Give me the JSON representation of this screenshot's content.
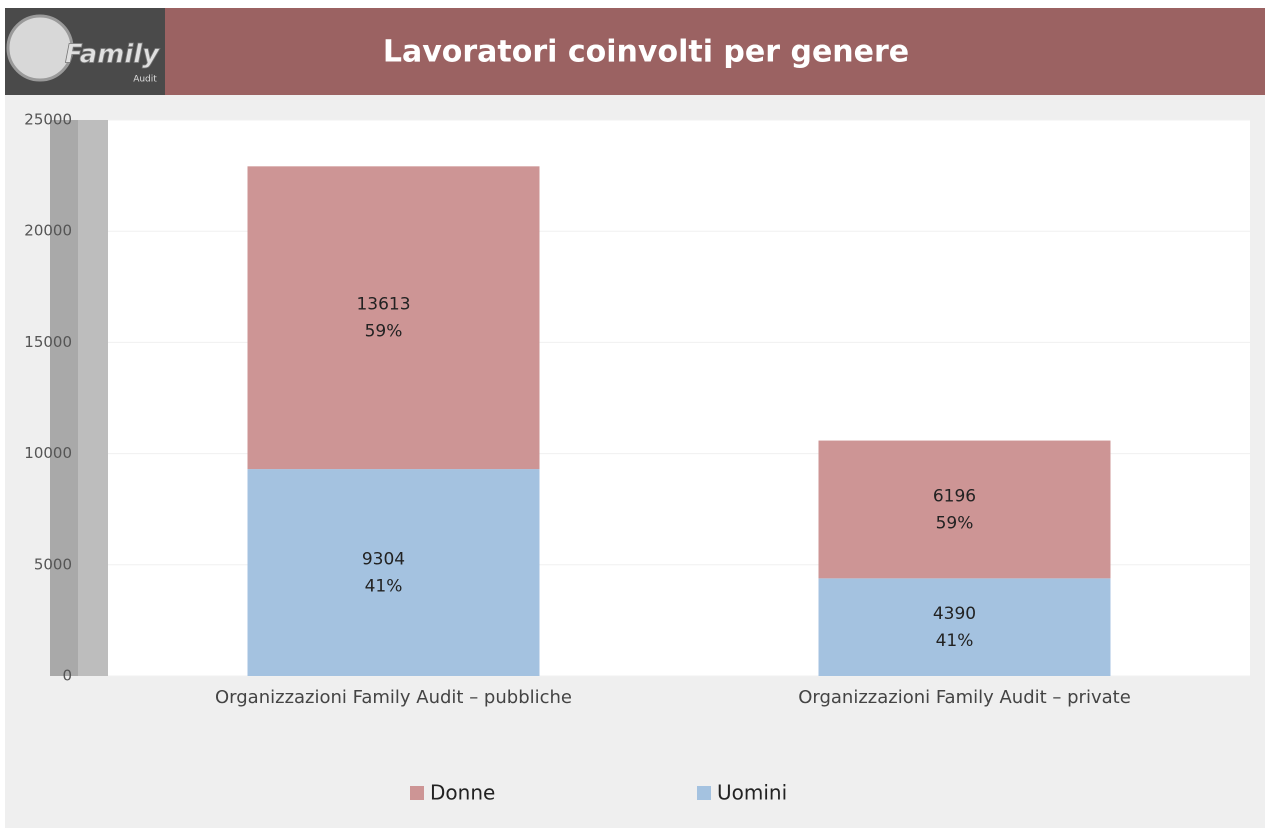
{
  "logo": {
    "text": "Family",
    "subtext": "Audit"
  },
  "chart_data": {
    "type": "stacked_bar",
    "title": "Lavoratori coinvolti per genere",
    "categories": [
      "Organizzazioni Family Audit – pubbliche",
      "Organizzazioni Family Audit – private"
    ],
    "series": [
      {
        "name": "Donne",
        "color": "#cd9595",
        "values": [
          13613,
          6196
        ],
        "percent_labels": [
          "59%",
          "59%"
        ]
      },
      {
        "name": "Uomini",
        "color": "#a4c2e0",
        "values": [
          9304,
          4390
        ],
        "percent_labels": [
          "41%",
          "41%"
        ]
      }
    ],
    "ylim": [
      0,
      25000
    ],
    "yticks": [
      0,
      5000,
      10000,
      15000,
      20000,
      25000
    ],
    "grid": true,
    "legend": "bottom"
  }
}
